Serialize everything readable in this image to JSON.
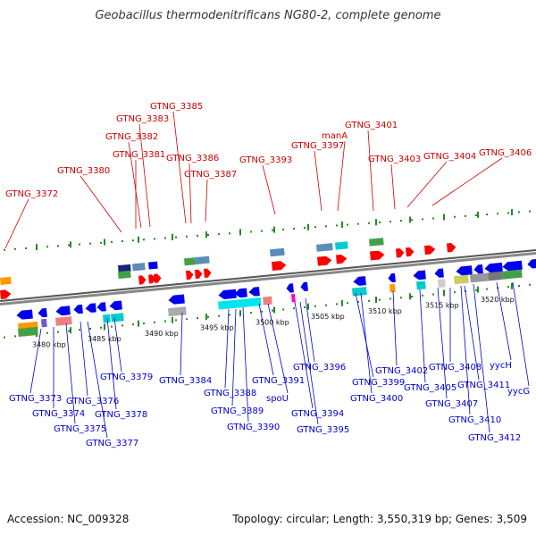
{
  "title": "Geobacillus thermodenitrificans NG80-2, complete genome",
  "footer": {
    "accession": "Accession: NC_009328",
    "summary": "Topology: circular; Length: 3,550,319 bp; Genes: 3,509"
  },
  "colors": {
    "forward_label": "#cc0000",
    "reverse_label": "#0000cc",
    "forward_gene": "#ff0000",
    "reverse_gene": "#0000ee",
    "backbone": "#888888",
    "tick": "#228b22"
  },
  "kbp_ticks": [
    "3480 kbp",
    "3485 kbp",
    "3490 kbp",
    "3495 kbp",
    "3500 kbp",
    "3505 kbp",
    "3510 kbp",
    "3515 kbp",
    "3520 kbp"
  ],
  "top_labels": [
    {
      "name": "GTNG_3372"
    },
    {
      "name": "GTNG_3380"
    },
    {
      "name": "GTNG_3381"
    },
    {
      "name": "GTNG_3382"
    },
    {
      "name": "GTNG_3383"
    },
    {
      "name": "GTNG_3385"
    },
    {
      "name": "GTNG_3386"
    },
    {
      "name": "GTNG_3387"
    },
    {
      "name": "GTNG_3393"
    },
    {
      "name": "GTNG_3397"
    },
    {
      "name": "manA"
    },
    {
      "name": "GTNG_3401"
    },
    {
      "name": "GTNG_3403"
    },
    {
      "name": "GTNG_3404"
    },
    {
      "name": "GTNG_3406"
    }
  ],
  "bottom_labels": [
    {
      "name": "GTNG_3373"
    },
    {
      "name": "GTNG_3374"
    },
    {
      "name": "GTNG_3375"
    },
    {
      "name": "GTNG_3376"
    },
    {
      "name": "GTNG_3377"
    },
    {
      "name": "GTNG_3378"
    },
    {
      "name": "GTNG_3379"
    },
    {
      "name": "GTNG_3384"
    },
    {
      "name": "GTNG_3388"
    },
    {
      "name": "GTNG_3389"
    },
    {
      "name": "GTNG_3390"
    },
    {
      "name": "GTNG_3391"
    },
    {
      "name": "spoU"
    },
    {
      "name": "GTNG_3394"
    },
    {
      "name": "GTNG_3395"
    },
    {
      "name": "GTNG_3396"
    },
    {
      "name": "GTNG_3399"
    },
    {
      "name": "GTNG_3400"
    },
    {
      "name": "GTNG_3402"
    },
    {
      "name": "GTNG_3405"
    },
    {
      "name": "GTNG_3407"
    },
    {
      "name": "GTNG_3408"
    },
    {
      "name": "GTNG_3410"
    },
    {
      "name": "GTNG_3411"
    },
    {
      "name": "GTNG_3412"
    },
    {
      "name": "yycH"
    },
    {
      "name": "yycG"
    }
  ]
}
